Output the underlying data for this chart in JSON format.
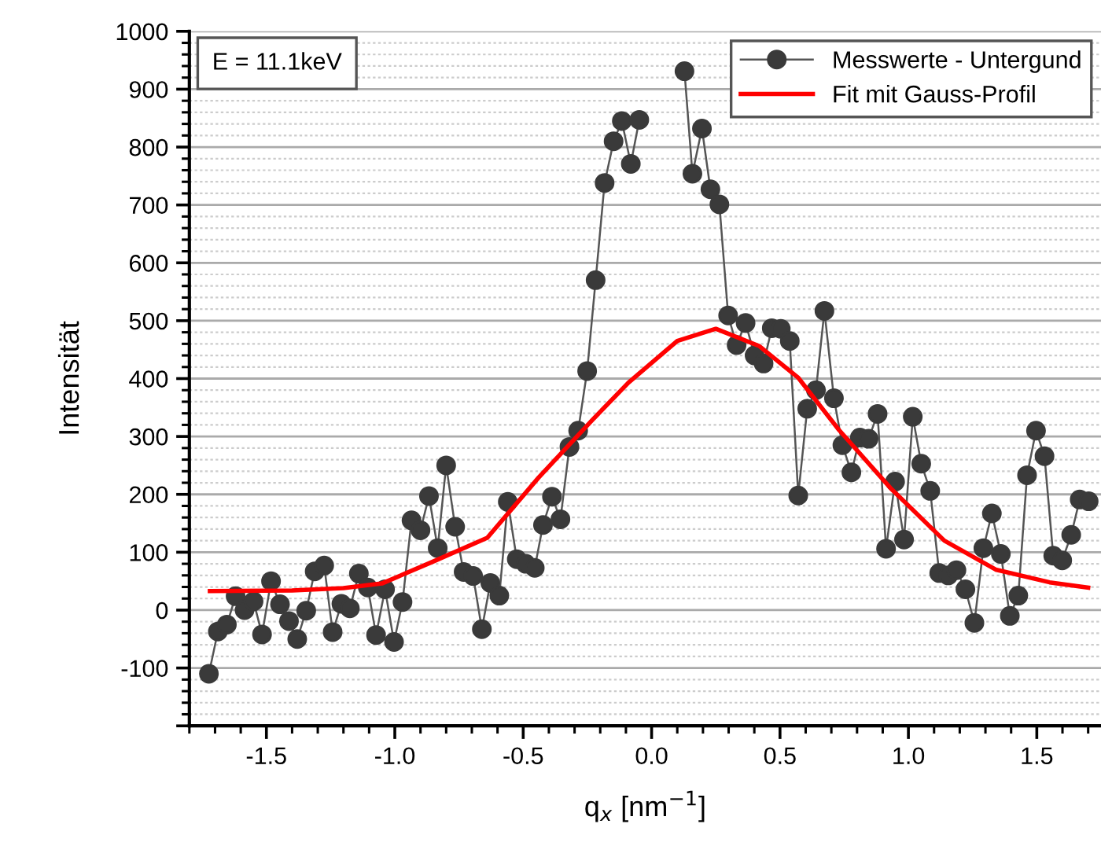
{
  "chart_data": {
    "type": "line",
    "xlabel": "q$_{x}$ [nm$^{−1}$]",
    "ylabel": "Intensität",
    "annotations": [
      "E = 11.1keV"
    ],
    "xlim": [
      -1.8,
      1.75
    ],
    "xticks": [
      {
        "value": -1.5,
        "label": "-1.5"
      },
      {
        "value": -1.0,
        "label": "-1.0"
      },
      {
        "value": -0.5,
        "label": "-0.5"
      },
      {
        "value": 0.0,
        "label": "0.0"
      },
      {
        "value": 0.5,
        "label": "0.5"
      },
      {
        "value": 1.0,
        "label": "1.0"
      },
      {
        "value": 1.5,
        "label": "1.5"
      }
    ],
    "ylim": [
      -200,
      1000
    ],
    "yticks": [
      {
        "value": -200,
        "label": null
      },
      -100,
      0,
      100,
      200,
      300,
      400,
      500,
      600,
      700,
      800,
      900,
      1000
    ],
    "grid": "y",
    "legend": "top right",
    "series": [
      {
        "name": "Messwerte - Untergund",
        "color": "#3a3a3a",
        "marker": "circle",
        "line_style": "solid",
        "x": [
          -1.724,
          -1.689,
          -1.654,
          -1.62,
          -1.585,
          -1.55,
          -1.517,
          -1.482,
          -1.447,
          -1.412,
          -1.38,
          -1.345,
          -1.312,
          -1.275,
          -1.242,
          -1.208,
          -1.175,
          -1.14,
          -1.105,
          -1.073,
          -1.038,
          -1.003,
          -0.97,
          -0.935,
          -0.9,
          -0.867,
          -0.833,
          -0.8,
          -0.765,
          -0.732,
          -0.695,
          -0.661,
          -0.628,
          -0.593,
          -0.56,
          -0.525,
          -0.49,
          -0.455,
          -0.423,
          -0.388,
          -0.355,
          -0.32,
          -0.286,
          -0.251,
          -0.218,
          -0.183,
          -0.148,
          -0.116,
          -0.081,
          -0.048,
          -0.014,
          0.021,
          0.055,
          0.09,
          0.128,
          0.159,
          0.196,
          0.229,
          0.264,
          0.298,
          0.331,
          0.366,
          0.401,
          0.436,
          0.468,
          0.503,
          0.538,
          0.571,
          0.606,
          0.64,
          0.673,
          0.71,
          0.743,
          0.778,
          0.811,
          0.845,
          0.88,
          0.913,
          0.948,
          0.983,
          1.017,
          1.05,
          1.085,
          1.12,
          1.155,
          1.187,
          1.222,
          1.257,
          1.292,
          1.325,
          1.36,
          1.395,
          1.428,
          1.462,
          1.497,
          1.53,
          1.564,
          1.599,
          1.634,
          1.667,
          1.702
        ],
        "values": [
          -110,
          -37,
          -25,
          24,
          0,
          15,
          -42,
          50,
          10,
          -19,
          -50,
          -1,
          67,
          77,
          -38,
          11,
          3,
          63,
          39,
          -43,
          36,
          -55,
          14,
          155,
          138,
          197,
          107,
          250,
          144,
          66,
          59,
          -33,
          47,
          25,
          187,
          88,
          80,
          73,
          147,
          196,
          157,
          282,
          310,
          413,
          570,
          738,
          810,
          845,
          771,
          847,
          null,
          null,
          null,
          null,
          931,
          754,
          832,
          727,
          701,
          509,
          458,
          496,
          440,
          426,
          487,
          486,
          465,
          198,
          348,
          380,
          517,
          366,
          285,
          238,
          298,
          296,
          339,
          106,
          222,
          122,
          334,
          253,
          206,
          64,
          60,
          69,
          36,
          -22,
          107,
          167,
          97,
          -10,
          25,
          233,
          310,
          266,
          94,
          86,
          130,
          191,
          188
        ]
      },
      {
        "name": "Fit mit Gauss-Profil",
        "color": "#ff0000",
        "marker": "none",
        "line_style": "solid",
        "x": [
          -1.72,
          -1.4,
          -1.2,
          -1.05,
          -0.85,
          -0.64,
          -0.44,
          -0.23,
          -0.09,
          0.1,
          0.25,
          0.42,
          0.57,
          0.73,
          0.93,
          1.14,
          1.34,
          1.55,
          1.7
        ],
        "values": [
          33,
          34,
          38,
          46,
          84,
          125,
          229,
          329,
          393,
          465,
          486,
          456,
          402,
          311,
          211,
          120,
          70,
          48,
          39
        ]
      }
    ]
  }
}
